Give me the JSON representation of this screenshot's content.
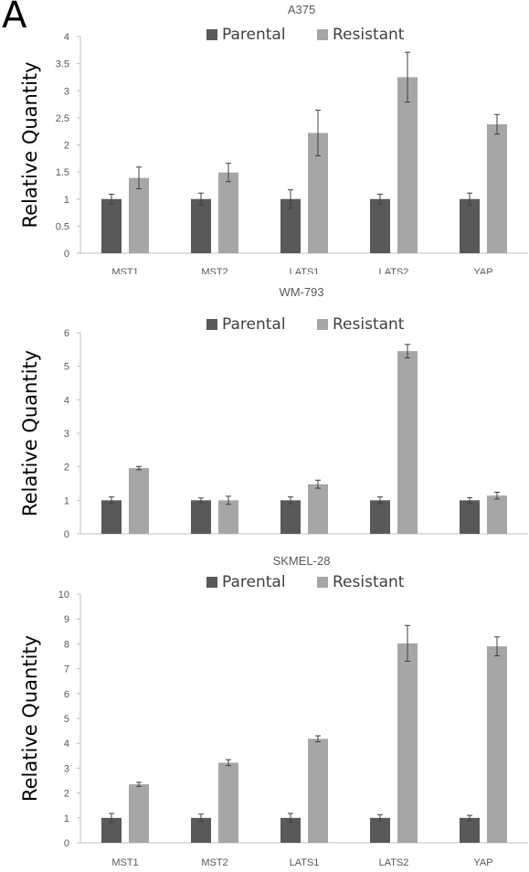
{
  "panel_label": "A",
  "chart_data": [
    {
      "type": "bar",
      "title": "A375",
      "ylabel": "Relative Quantity",
      "xlabel": "",
      "ylim": [
        0,
        4
      ],
      "yticks": [
        0,
        0.5,
        1,
        1.5,
        2,
        2.5,
        3,
        3.5,
        4
      ],
      "ytick_labels": [
        "0",
        "0.5",
        "1",
        "1.5",
        "2",
        "2.5",
        "3",
        "3.5",
        "4"
      ],
      "legend_position": "top-center",
      "grid": false,
      "categories": [
        "MST1",
        "MST2",
        "LATS1",
        "LATS2",
        "YAP"
      ],
      "series": [
        {
          "name": "Parental",
          "color": "#595959",
          "values": [
            1,
            1,
            1,
            1,
            1
          ],
          "errors": [
            0.09,
            0.11,
            0.17,
            0.09,
            0.11
          ]
        },
        {
          "name": "Resistant",
          "color": "#a6a6a6",
          "values": [
            1.39,
            1.49,
            2.22,
            3.25,
            2.38
          ],
          "errors": [
            0.2,
            0.17,
            0.42,
            0.46,
            0.18
          ]
        }
      ]
    },
    {
      "type": "bar",
      "title": "WM-793",
      "ylabel": "Relative Quantity",
      "xlabel": "",
      "ylim": [
        0,
        6
      ],
      "yticks": [
        0,
        1,
        2,
        3,
        4,
        5,
        6
      ],
      "ytick_labels": [
        "0",
        "1",
        "2",
        "3",
        "4",
        "5",
        "6"
      ],
      "legend_position": "top-center",
      "grid": false,
      "categories": [
        "MST1",
        "MST2",
        "LATS1",
        "LATS2",
        "YAP"
      ],
      "series": [
        {
          "name": "Parental",
          "color": "#595959",
          "values": [
            1,
            1,
            1,
            1,
            1
          ],
          "errors": [
            0.1,
            0.07,
            0.1,
            0.1,
            0.08
          ]
        },
        {
          "name": "Resistant",
          "color": "#a6a6a6",
          "values": [
            1.96,
            1,
            1.48,
            5.45,
            1.14
          ],
          "errors": [
            0.05,
            0.12,
            0.12,
            0.2,
            0.1
          ]
        }
      ]
    },
    {
      "type": "bar",
      "title": "SKMEL-28",
      "ylabel": "Relative Quantity",
      "xlabel": "",
      "ylim": [
        0,
        10
      ],
      "yticks": [
        0,
        1,
        2,
        3,
        4,
        5,
        6,
        7,
        8,
        9,
        10
      ],
      "ytick_labels": [
        "0",
        "1",
        "2",
        "3",
        "4",
        "5",
        "6",
        "7",
        "8",
        "9",
        "10"
      ],
      "legend_position": "top-center",
      "grid": false,
      "categories": [
        "MST1",
        "MST2",
        "LATS1",
        "LATS2",
        "YAP"
      ],
      "series": [
        {
          "name": "Parental",
          "color": "#595959",
          "values": [
            1,
            1,
            1,
            1,
            1
          ],
          "errors": [
            0.18,
            0.15,
            0.18,
            0.13,
            0.1
          ]
        },
        {
          "name": "Resistant",
          "color": "#a6a6a6",
          "values": [
            2.35,
            3.22,
            4.18,
            8.02,
            7.9
          ],
          "errors": [
            0.08,
            0.12,
            0.12,
            0.72,
            0.38
          ]
        }
      ]
    }
  ]
}
